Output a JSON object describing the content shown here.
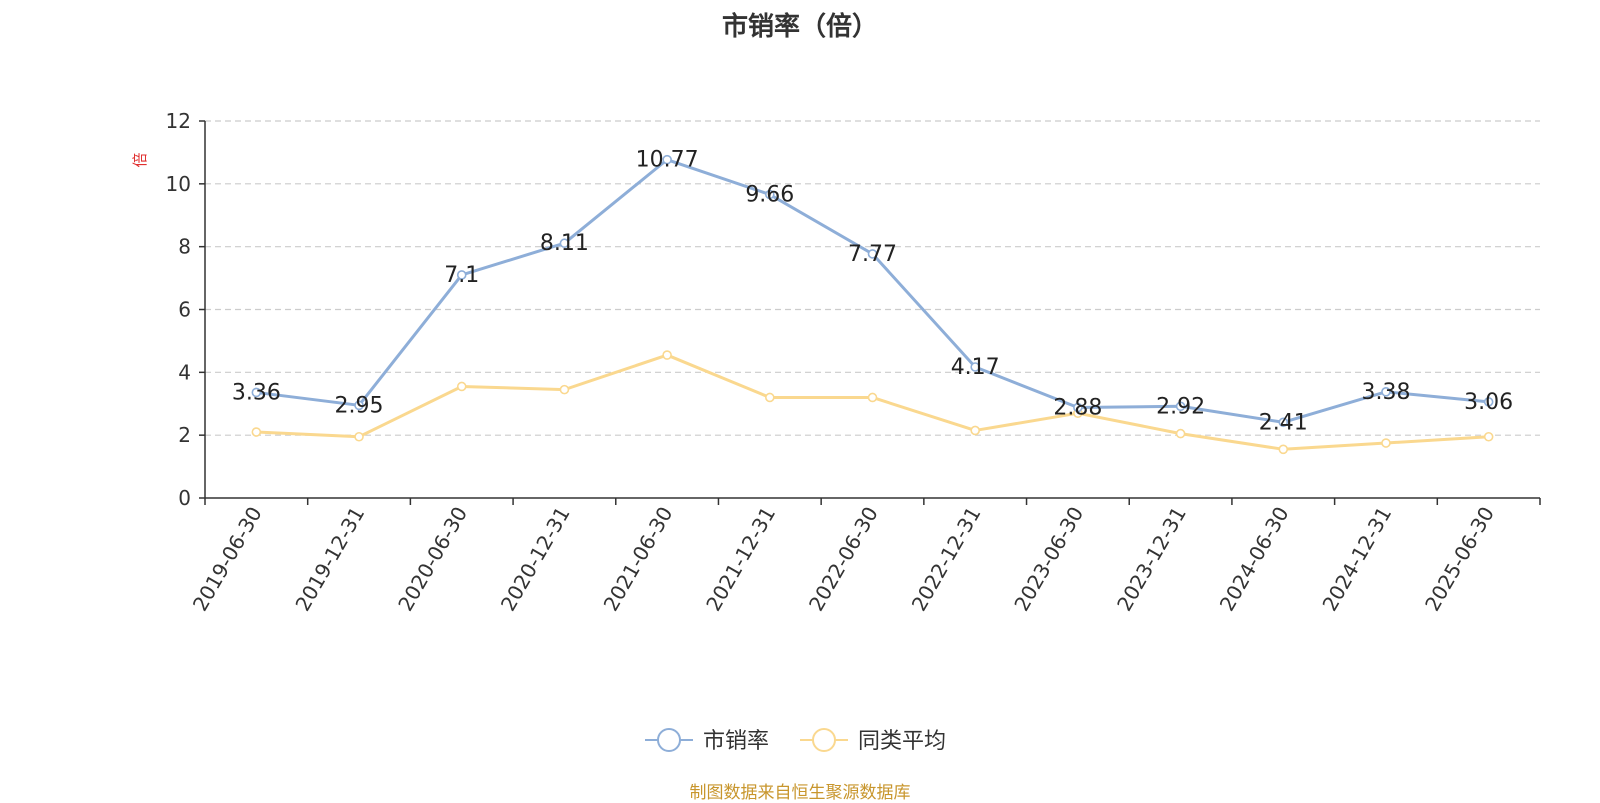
{
  "chart_data": {
    "type": "line",
    "title": "市销率（倍）",
    "ylabel": "倍",
    "categories": [
      "2019-06-30",
      "2019-12-31",
      "2020-06-30",
      "2020-12-31",
      "2021-06-30",
      "2021-12-31",
      "2022-06-30",
      "2022-12-31",
      "2023-06-30",
      "2023-12-31",
      "2024-06-30",
      "2024-12-31",
      "2025-06-30"
    ],
    "series": [
      {
        "name": "市销率",
        "color": "#8eaed8",
        "values": [
          3.36,
          2.95,
          7.1,
          8.11,
          10.77,
          9.66,
          7.77,
          4.17,
          2.88,
          2.92,
          2.41,
          3.38,
          3.06
        ],
        "show_labels": true
      },
      {
        "name": "同类平均",
        "color": "#fad88f",
        "values": [
          2.1,
          1.95,
          3.55,
          3.45,
          4.55,
          3.2,
          3.2,
          2.15,
          2.7,
          2.05,
          1.55,
          1.75,
          1.95
        ],
        "show_labels": false
      }
    ],
    "ylim": [
      0,
      12
    ],
    "yticks": [
      0,
      2,
      4,
      6,
      8,
      10,
      12
    ],
    "grid": true,
    "legend_position": "bottom-center"
  },
  "source": "制图数据来自恒生聚源数据库"
}
